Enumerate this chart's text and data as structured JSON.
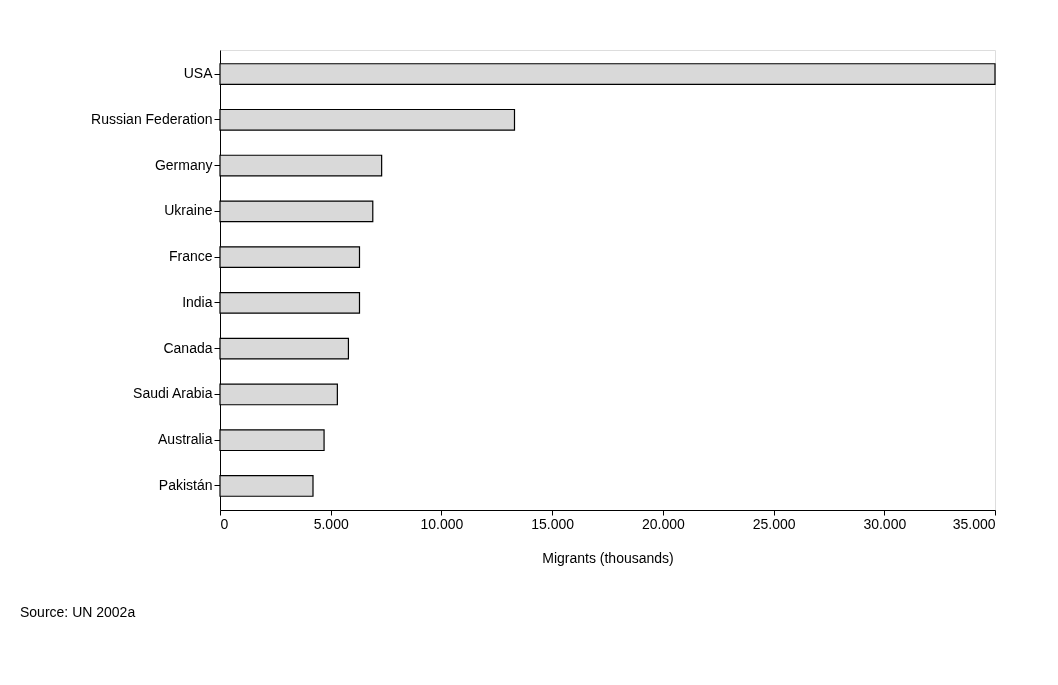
{
  "chart_data": {
    "type": "bar",
    "orientation": "horizontal",
    "xlabel": "Migrants (thousands)",
    "categories": [
      "USA",
      "Russian Federation",
      "Germany",
      "Ukraine",
      "France",
      "India",
      "Canada",
      "Saudi Arabia",
      "Australia",
      "Pakistán"
    ],
    "values": [
      35000,
      13300,
      7300,
      6900,
      6300,
      6300,
      5800,
      5300,
      4700,
      4200
    ],
    "color": "#d9d9d9",
    "xlim": [
      0,
      35000
    ],
    "xticks": [
      {
        "value": 0,
        "label": "0"
      },
      {
        "value": 5000,
        "label": "5.000"
      },
      {
        "value": 10000,
        "label": "10.000"
      },
      {
        "value": 15000,
        "label": "15.000"
      },
      {
        "value": 20000,
        "label": "20.000"
      },
      {
        "value": 25000,
        "label": "25.000"
      },
      {
        "value": 30000,
        "label": "30.000"
      },
      {
        "value": 35000,
        "label": "35.000"
      }
    ],
    "grid": false,
    "annotations": [
      "Source: UN 2002a"
    ]
  }
}
